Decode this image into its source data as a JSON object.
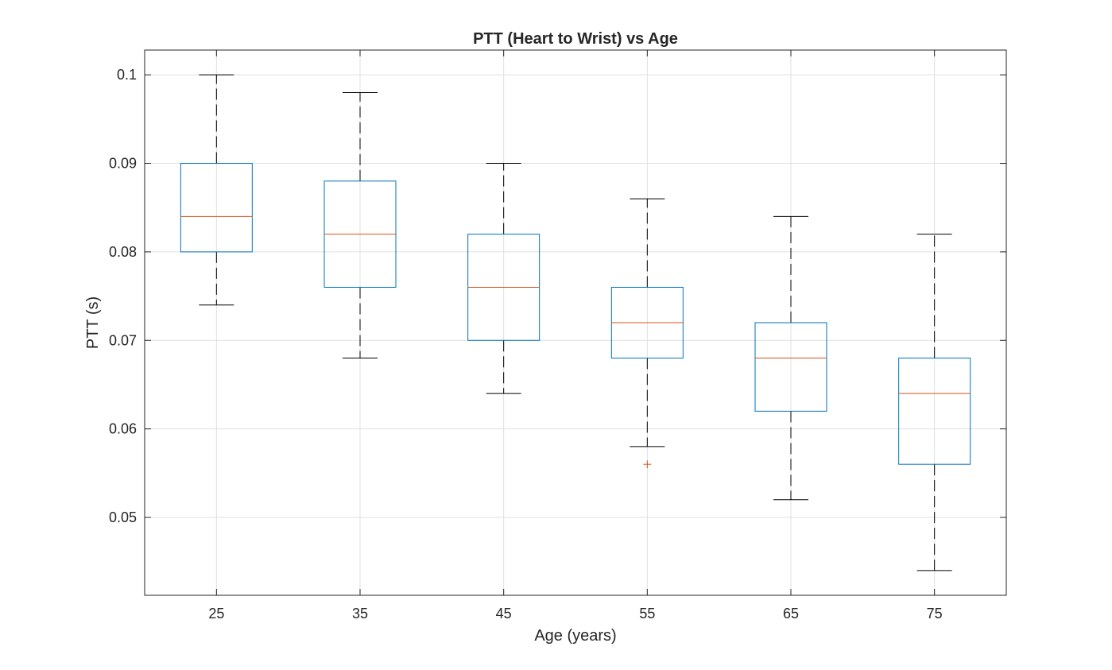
{
  "chart_data": {
    "type": "boxplot",
    "title": "PTT (Heart to Wrist) vs Age",
    "xlabel": "Age (years)",
    "ylabel": "PTT (s)",
    "categories": [
      "25",
      "35",
      "45",
      "55",
      "65",
      "75"
    ],
    "boxes": [
      {
        "category": "25",
        "whisker_low": 0.074,
        "q1": 0.08,
        "median": 0.084,
        "q3": 0.09,
        "whisker_high": 0.1,
        "outliers": []
      },
      {
        "category": "35",
        "whisker_low": 0.068,
        "q1": 0.076,
        "median": 0.082,
        "q3": 0.088,
        "whisker_high": 0.098,
        "outliers": []
      },
      {
        "category": "45",
        "whisker_low": 0.064,
        "q1": 0.07,
        "median": 0.076,
        "q3": 0.082,
        "whisker_high": 0.09,
        "outliers": []
      },
      {
        "category": "55",
        "whisker_low": 0.058,
        "q1": 0.068,
        "median": 0.072,
        "q3": 0.076,
        "whisker_high": 0.086,
        "outliers": [
          0.056
        ]
      },
      {
        "category": "65",
        "whisker_low": 0.052,
        "q1": 0.062,
        "median": 0.068,
        "q3": 0.072,
        "whisker_high": 0.084,
        "outliers": []
      },
      {
        "category": "75",
        "whisker_low": 0.044,
        "q1": 0.056,
        "median": 0.064,
        "q3": 0.068,
        "whisker_high": 0.082,
        "outliers": []
      }
    ],
    "yticks": [
      "0.05",
      "0.06",
      "0.07",
      "0.08",
      "0.09",
      "0.1"
    ],
    "ylim": [
      0.0412,
      0.1028
    ],
    "grid": true,
    "legend": "none",
    "colors": {
      "box": "#0072BD",
      "median": "#D95319",
      "whisker": "#000000",
      "outlier": "#D95319",
      "grid": "#e0e0e0",
      "axes": "#262626"
    }
  }
}
